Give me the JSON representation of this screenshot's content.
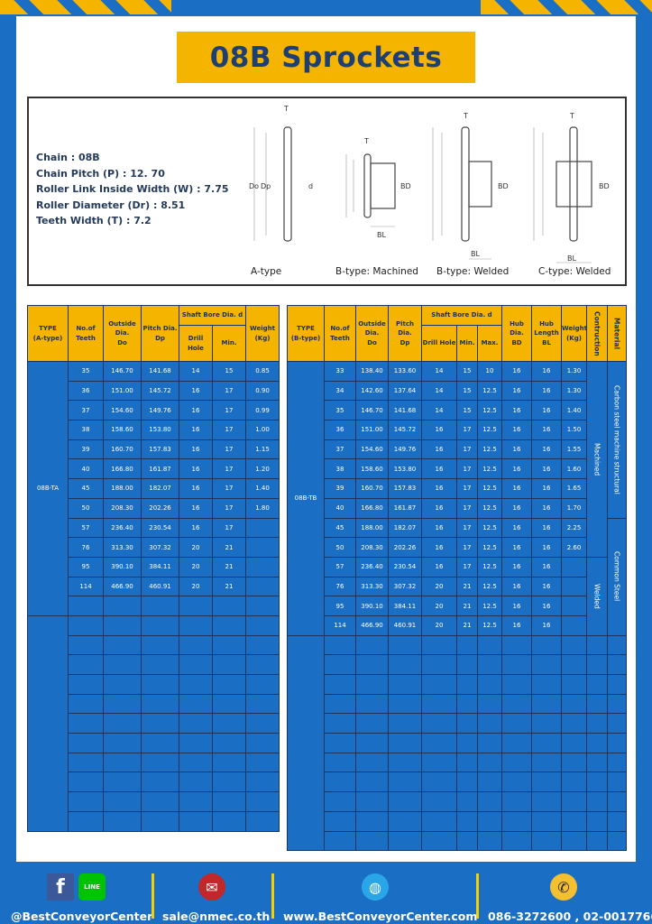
{
  "title": "08B Sprockets",
  "specs": [
    {
      "label": "Chain",
      "value": "08B"
    },
    {
      "label": "Chain Pitch (P)",
      "value": "12. 70"
    },
    {
      "label": "Roller Link Inside Width (W)",
      "value": "7.75"
    },
    {
      "label": "Roller Diameter (Dr)",
      "value": "8.51"
    },
    {
      "label": "Teeth Width (T)",
      "value": "7.2"
    }
  ],
  "diagram": {
    "captions": [
      "A-type",
      "B-type: Machined",
      "B-type: Welded",
      "C-type: Welded"
    ],
    "labels": {
      "t": "T",
      "do": "Do",
      "dp": "Dp",
      "d": "d",
      "bd": "BD",
      "bl": "BL"
    }
  },
  "table_a": {
    "headers": {
      "type": [
        "TYPE",
        "(A-type)"
      ],
      "teeth": [
        "No.of",
        "Teeth"
      ],
      "od": [
        "Outside",
        "Dia.",
        "Do"
      ],
      "pd": [
        "Pitch Dia.",
        "Dp"
      ],
      "bore": "Shaft Bore Dia. d",
      "drill": "Drill Hole",
      "min": "Min.",
      "weight": [
        "Weight",
        "(Kg)"
      ]
    },
    "type_value": "08B-TA",
    "rows": [
      [
        "35",
        "146.70",
        "141.68",
        "14",
        "15",
        "0.85"
      ],
      [
        "36",
        "151.00",
        "145.72",
        "16",
        "17",
        "0.90"
      ],
      [
        "37",
        "154.60",
        "149.76",
        "16",
        "17",
        "0.99"
      ],
      [
        "38",
        "158.60",
        "153.80",
        "16",
        "17",
        "1.00"
      ],
      [
        "39",
        "160.70",
        "157.83",
        "16",
        "17",
        "1.15"
      ],
      [
        "40",
        "166.80",
        "161.87",
        "16",
        "17",
        "1.20"
      ],
      [
        "45",
        "188.00",
        "182.07",
        "16",
        "17",
        "1.40"
      ],
      [
        "50",
        "208.30",
        "202.26",
        "16",
        "17",
        "1.80"
      ],
      [
        "57",
        "236.40",
        "230.54",
        "16",
        "17",
        ""
      ],
      [
        "76",
        "313.30",
        "307.32",
        "20",
        "21",
        ""
      ],
      [
        "95",
        "390.10",
        "384.11",
        "20",
        "21",
        ""
      ],
      [
        "114",
        "466.90",
        "460.91",
        "20",
        "21",
        ""
      ]
    ]
  },
  "table_b": {
    "headers": {
      "type": [
        "TYPE",
        "(B-type)"
      ],
      "teeth": [
        "No.of",
        "Teeth"
      ],
      "od": [
        "Outside",
        "Dia.",
        "Do"
      ],
      "pd": [
        "Pitch Dia.",
        "Dp"
      ],
      "bore": "Shaft Bore Dia. d",
      "drill": "Drill Hole",
      "min": "Min.",
      "max": "Max.",
      "hub": [
        "Hub Dia.",
        "BD"
      ],
      "hublen": [
        "Hub",
        "Length",
        "BL"
      ],
      "weight": [
        "Weight",
        "(Kg)"
      ],
      "construction": "Contruction",
      "material": "Material"
    },
    "type_value": "08B-TB",
    "construction": [
      "Machined",
      "Welded"
    ],
    "material": [
      "Carbon steel  machine structural",
      "Common Steel"
    ],
    "rows": [
      [
        "33",
        "138.40",
        "133.60",
        "14",
        "15",
        "10",
        "16",
        "16",
        "1.30"
      ],
      [
        "34",
        "142.60",
        "137.64",
        "14",
        "15",
        "12.5",
        "16",
        "16",
        "1.30"
      ],
      [
        "35",
        "146.70",
        "141.68",
        "14",
        "15",
        "12.5",
        "16",
        "16",
        "1.40"
      ],
      [
        "36",
        "151.00",
        "145.72",
        "16",
        "17",
        "12.5",
        "16",
        "16",
        "1.50"
      ],
      [
        "37",
        "154.60",
        "149.76",
        "16",
        "17",
        "12.5",
        "16",
        "16",
        "1.55"
      ],
      [
        "38",
        "158.60",
        "153.80",
        "16",
        "17",
        "12.5",
        "16",
        "16",
        "1.60"
      ],
      [
        "39",
        "160.70",
        "157.83",
        "16",
        "17",
        "12.5",
        "16",
        "16",
        "1.65"
      ],
      [
        "40",
        "166.80",
        "161.87",
        "16",
        "17",
        "12.5",
        "16",
        "16",
        "1.70"
      ],
      [
        "45",
        "188.00",
        "182.07",
        "16",
        "17",
        "12.5",
        "16",
        "16",
        "2.25"
      ],
      [
        "50",
        "208.30",
        "202.26",
        "16",
        "17",
        "12.5",
        "16",
        "16",
        "2.60"
      ],
      [
        "57",
        "236.40",
        "230.54",
        "16",
        "17",
        "12.5",
        "16",
        "16",
        ""
      ],
      [
        "76",
        "313.30",
        "307.32",
        "20",
        "21",
        "12.5",
        "16",
        "16",
        ""
      ],
      [
        "95",
        "390.10",
        "384.11",
        "20",
        "21",
        "12.5",
        "16",
        "16",
        ""
      ],
      [
        "114",
        "466.90",
        "460.91",
        "20",
        "21",
        "12.5",
        "16",
        "16",
        ""
      ]
    ]
  },
  "footer": {
    "social": "@BestConveyorCenter",
    "line": "LINE",
    "facebook": "f",
    "email": "sale@nmec.co.th",
    "website": "www.BestConveyorCenter.com",
    "phone": "086-3272600 , 02-0017766"
  },
  "colors": {
    "brand_blue": "#1a6ec4",
    "accent_yellow": "#f5b400",
    "title_text": "#1d3f74"
  }
}
